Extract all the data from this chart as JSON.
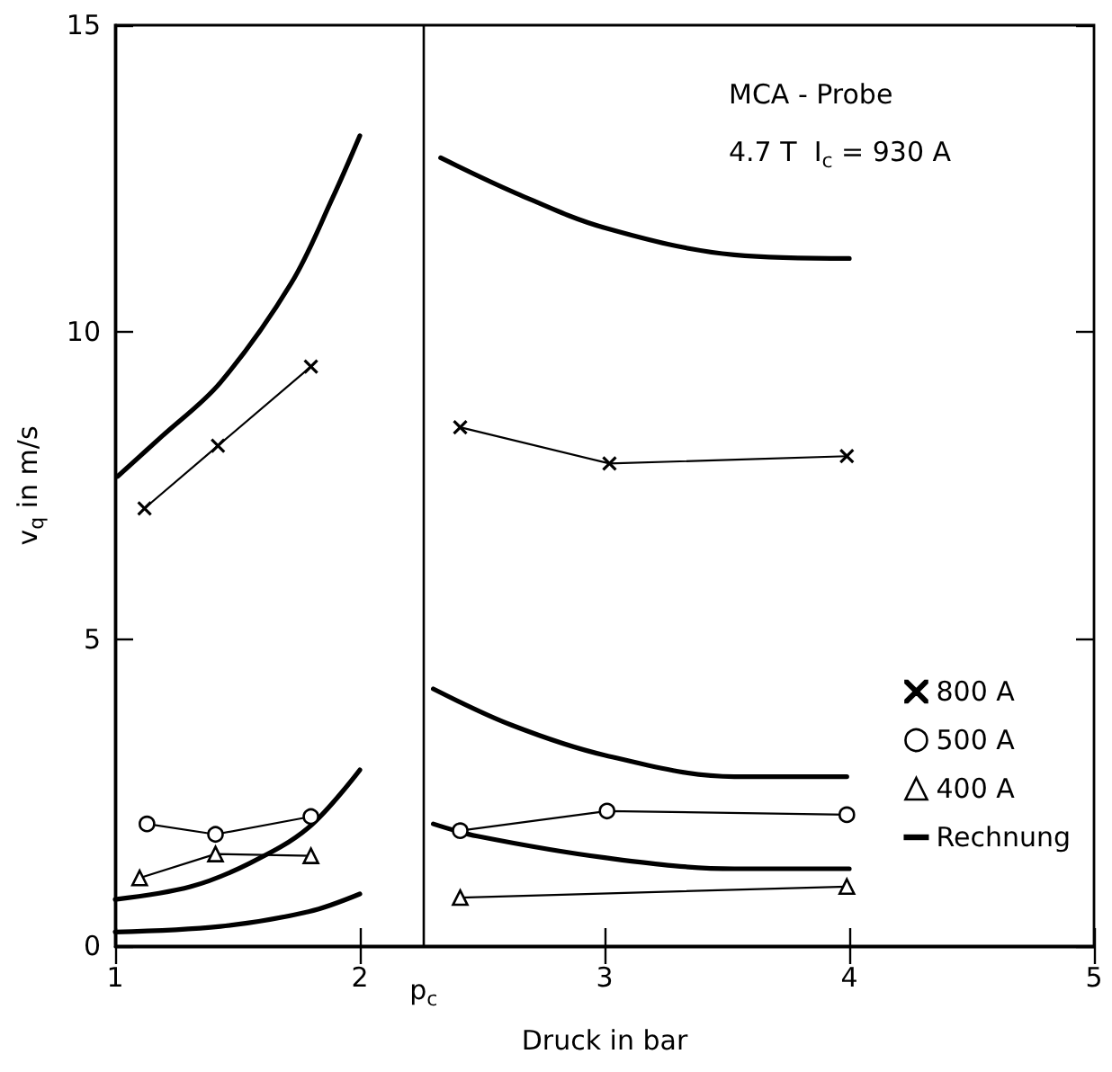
{
  "chart_data": {
    "type": "line",
    "xlabel": "Druck in bar",
    "ylabel": "v$_{q}$ in m/s",
    "annotations": [
      "MCA - Probe",
      "4.7 T  I$_{c}$ = 930 A"
    ],
    "xlim": [
      1,
      5
    ],
    "xticks": [
      1,
      2,
      3,
      4,
      5
    ],
    "ylim": [
      0,
      15
    ],
    "yticks": [
      0,
      5,
      10,
      15
    ],
    "grid": false,
    "legend": "right",
    "line_style": "solid",
    "ref_lines": [
      {
        "axis": "x",
        "value": 2.26,
        "label": "p$_{c}$",
        "color": "#000000"
      }
    ],
    "series": [
      {
        "name": "800 A",
        "color": "#000000",
        "marker": "cross",
        "x": [
          1.12,
          1.42,
          1.8,
          null,
          2.41,
          3.02,
          3.99
        ],
        "values": [
          7.13,
          8.15,
          9.44,
          null,
          8.45,
          7.86,
          7.98
        ]
      },
      {
        "name": "500 A",
        "color": "#000000",
        "marker": "circle",
        "x": [
          1.13,
          1.41,
          1.8,
          null,
          2.41,
          3.01,
          3.99
        ],
        "values": [
          1.99,
          1.82,
          2.11,
          null,
          1.88,
          2.2,
          2.14
        ]
      },
      {
        "name": "400 A",
        "color": "#000000",
        "marker": "triangle",
        "x": [
          1.1,
          1.41,
          1.8,
          null,
          2.41,
          3.99
        ],
        "values": [
          1.11,
          1.5,
          1.47,
          null,
          0.79,
          0.97
        ]
      },
      {
        "name": "Rechnung",
        "color": "#000000",
        "marker": "none",
        "x": [
          1.01,
          1.19,
          1.43,
          1.72,
          1.89,
          2.0
        ],
        "values": [
          7.65,
          8.3,
          9.18,
          10.8,
          12.2,
          13.2
        ]
      },
      {
        "color": "#000000",
        "marker": "none",
        "x": [
          1.0,
          1.31,
          1.55,
          1.79,
          2.0
        ],
        "values": [
          0.76,
          0.97,
          1.35,
          1.93,
          2.87
        ]
      },
      {
        "color": "#000000",
        "marker": "none",
        "x": [
          1.0,
          1.43,
          1.79,
          2.0
        ],
        "values": [
          0.23,
          0.32,
          0.56,
          0.85
        ]
      },
      {
        "color": "#000000",
        "marker": "none",
        "x": [
          2.33,
          2.64,
          3.0,
          3.53,
          4.0
        ],
        "values": [
          12.84,
          12.26,
          11.7,
          11.26,
          11.2
        ]
      },
      {
        "color": "#000000",
        "marker": "none",
        "x": [
          2.3,
          2.62,
          3.0,
          3.53,
          3.99
        ],
        "values": [
          4.19,
          3.6,
          3.11,
          2.76,
          2.76
        ]
      },
      {
        "color": "#000000",
        "marker": "none",
        "x": [
          2.3,
          2.48,
          3.0,
          3.53,
          4.0
        ],
        "values": [
          1.99,
          1.79,
          1.44,
          1.26,
          1.26
        ]
      }
    ]
  }
}
